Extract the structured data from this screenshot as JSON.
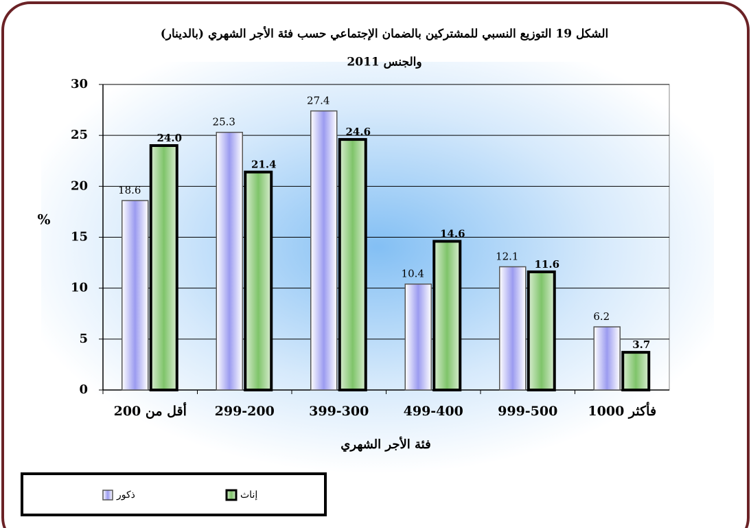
{
  "chart_data": {
    "type": "bar",
    "title": [
      "الشكل 19 التوزيع النسبي للمشتركين بالضمان الإجتماعي حسب فئة الأجر الشهري (بالدينار)",
      "والجنس 2011"
    ],
    "y_label": "%",
    "x_label": "فئة الأجر الشهري",
    "categories": [
      "أقل من 200",
      "299-200",
      "399-300",
      "499-400",
      "999-500",
      "1000 فأكثر"
    ],
    "series": [
      {
        "name": "ذكور",
        "color": "#9b9bf0",
        "values": [
          18.6,
          25.3,
          27.4,
          10.4,
          12.1,
          6.2
        ],
        "value_labels": [
          "18.6",
          "25.3",
          "27.4",
          "10.4",
          "12.1",
          "6.2"
        ]
      },
      {
        "name": "إناث",
        "color": "#7fc46a",
        "values": [
          24.0,
          21.4,
          24.6,
          14.6,
          11.6,
          3.7
        ],
        "value_labels": [
          "24.0",
          "21.4",
          "24.6",
          "14.6",
          "11.6",
          "3.7"
        ]
      }
    ],
    "ylim": [
      0,
      30
    ],
    "yticks": [
      0,
      5,
      10,
      15,
      20,
      25,
      30
    ],
    "grid": true
  }
}
